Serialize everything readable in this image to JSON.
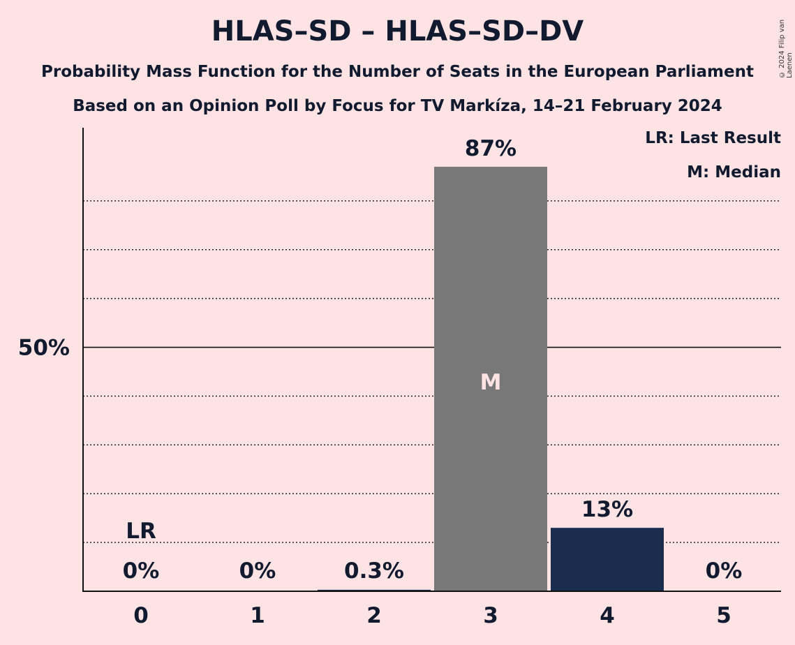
{
  "title": "HLAS–SD – HLAS–SD–DV",
  "subtitle1": "Probability Mass Function for the Number of Seats in the European Parliament",
  "subtitle2": "Based on an Opinion Poll by Focus for TV Markíza, 14–21 February 2024",
  "copyright": "© 2024 Filip van Laenen",
  "legend": {
    "lr": "LR: Last Result",
    "m": "M: Median"
  },
  "colors": {
    "background": "#fde3e4",
    "median_bar": "#787878",
    "party_bar": "#1b2d4f",
    "text": "#111a2e"
  },
  "chart_data": {
    "type": "bar",
    "categories": [
      "0",
      "1",
      "2",
      "3",
      "4",
      "5"
    ],
    "values": [
      0,
      0,
      0.3,
      87,
      13,
      0
    ],
    "value_labels": [
      "0%",
      "0%",
      "0.3%",
      "87%",
      "13%",
      "0%"
    ],
    "ylim": [
      0,
      95
    ],
    "y_ticks": [
      {
        "value": 50,
        "label": "50%"
      }
    ],
    "gridlines": [
      10,
      20,
      30,
      40,
      50,
      60,
      70,
      80
    ],
    "median_index": 3,
    "median_label": "M",
    "last_result_index": 0,
    "last_result_label": "LR",
    "grid": true,
    "legend_position": "top-right"
  }
}
